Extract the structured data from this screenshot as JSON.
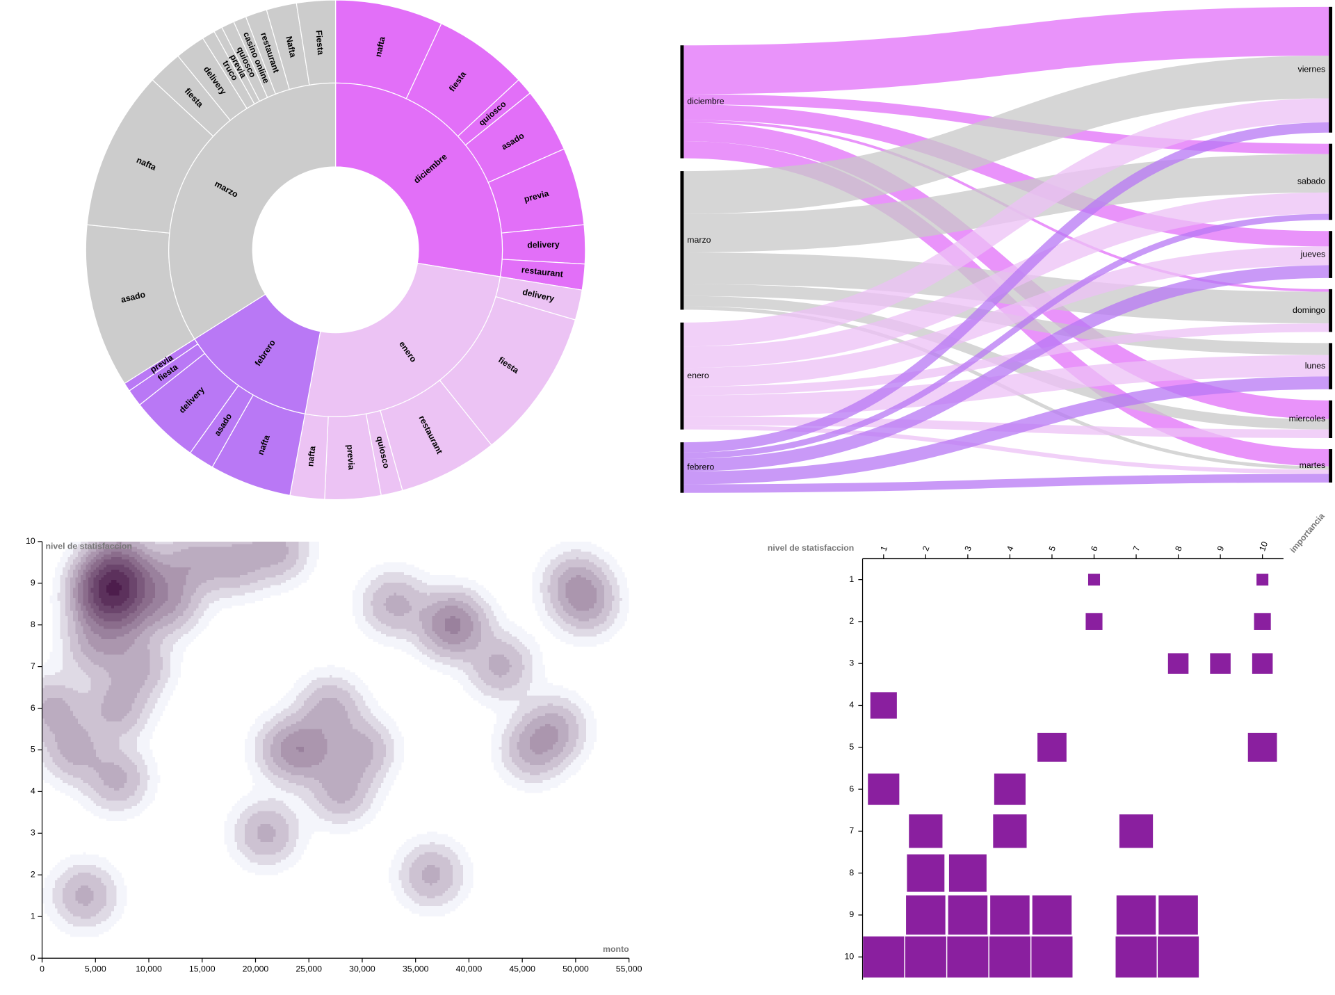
{
  "chart_data": [
    {
      "type": "sunburst",
      "children": [
        {
          "name": "diciembre",
          "color": "#e26ff8",
          "children": [
            {
              "name": "nafta",
              "value": 25
            },
            {
              "name": "fiesta",
              "value": 22
            },
            {
              "name": "quiosco",
              "value": 4
            },
            {
              "name": "asado",
              "value": 15
            },
            {
              "name": "previa",
              "value": 18
            },
            {
              "name": "delivery",
              "value": 9
            },
            {
              "name": "restaurant",
              "value": 6
            }
          ]
        },
        {
          "name": "enero",
          "color": "#ecc3f4",
          "children": [
            {
              "name": "delivery",
              "value": 7
            },
            {
              "name": "fiesta",
              "value": 35
            },
            {
              "name": "restaurant",
              "value": 23
            },
            {
              "name": "quiosco",
              "value": 5
            },
            {
              "name": "previa",
              "value": 13
            },
            {
              "name": "nafta",
              "value": 8
            }
          ]
        },
        {
          "name": "febrero",
          "color": "#b978f5",
          "children": [
            {
              "name": "nafta",
              "value": 19
            },
            {
              "name": "asado",
              "value": 6
            },
            {
              "name": "delivery",
              "value": 16
            },
            {
              "name": "fiesta",
              "value": 4
            },
            {
              "name": "previa",
              "value": 2
            }
          ]
        },
        {
          "name": "marzo",
          "color": "#cccccc",
          "children": [
            {
              "name": "asado",
              "value": 38
            },
            {
              "name": "nafta",
              "value": 37
            },
            {
              "name": "fiesta",
              "value": 8
            },
            {
              "name": "delivery",
              "value": 7
            },
            {
              "name": "truco",
              "value": 3
            },
            {
              "name": "previa",
              "value": 2
            },
            {
              "name": "quiosco",
              "value": 3
            },
            {
              "name": "casino online",
              "value": 3
            },
            {
              "name": "restaurant",
              "value": 5
            },
            {
              "name": "Nafta",
              "value": 7
            },
            {
              "name": "Fiesta",
              "value": 9
            }
          ]
        }
      ]
    },
    {
      "type": "sankey",
      "sources": [
        {
          "name": "diciembre",
          "color": "#e26ff8"
        },
        {
          "name": "marzo",
          "color": "#c8c8c8"
        },
        {
          "name": "enero",
          "color": "#ecc0f5"
        },
        {
          "name": "febrero",
          "color": "#b777f4"
        }
      ],
      "targets": [
        "viernes",
        "sabado",
        "jueves",
        "domingo",
        "lunes",
        "miercoles",
        "martes"
      ],
      "links": [
        {
          "source": "diciembre",
          "target": "viernes",
          "value": 57
        },
        {
          "source": "diciembre",
          "target": "sabado",
          "value": 12
        },
        {
          "source": "diciembre",
          "target": "jueves",
          "value": 18
        },
        {
          "source": "diciembre",
          "target": "domingo",
          "value": 3
        },
        {
          "source": "diciembre",
          "target": "miercoles",
          "value": 22
        },
        {
          "source": "diciembre",
          "target": "martes",
          "value": 20
        },
        {
          "source": "marzo",
          "target": "viernes",
          "value": 50
        },
        {
          "source": "marzo",
          "target": "sabado",
          "value": 45
        },
        {
          "source": "marzo",
          "target": "domingo",
          "value": 37
        },
        {
          "source": "marzo",
          "target": "lunes",
          "value": 14
        },
        {
          "source": "marzo",
          "target": "miercoles",
          "value": 12
        },
        {
          "source": "marzo",
          "target": "martes",
          "value": 4
        },
        {
          "source": "enero",
          "target": "viernes",
          "value": 28
        },
        {
          "source": "enero",
          "target": "sabado",
          "value": 25
        },
        {
          "source": "enero",
          "target": "jueves",
          "value": 22
        },
        {
          "source": "enero",
          "target": "domingo",
          "value": 10
        },
        {
          "source": "enero",
          "target": "lunes",
          "value": 25
        },
        {
          "source": "enero",
          "target": "miercoles",
          "value": 10
        },
        {
          "source": "enero",
          "target": "martes",
          "value": 5
        },
        {
          "source": "febrero",
          "target": "viernes",
          "value": 12
        },
        {
          "source": "febrero",
          "target": "sabado",
          "value": 7
        },
        {
          "source": "febrero",
          "target": "jueves",
          "value": 15
        },
        {
          "source": "febrero",
          "target": "lunes",
          "value": 15
        },
        {
          "source": "febrero",
          "target": "martes",
          "value": 10
        }
      ]
    },
    {
      "type": "contour",
      "x_label": "monto",
      "y_label": "nivel de statisfaccion",
      "color": "#3e0a3c",
      "x": [
        6000,
        6500,
        7000,
        6800,
        5500,
        7500,
        6200,
        8000,
        9000,
        5000,
        7000,
        10000,
        12000,
        14000,
        18000,
        22000,
        7000,
        4000,
        3000,
        1000,
        25000,
        23000,
        28000,
        27000,
        30000,
        36500,
        38000,
        39000,
        51000,
        50000,
        48000,
        46000,
        43000,
        21000,
        33000
      ],
      "y": [
        9,
        9,
        8.8,
        9.2,
        8.5,
        9.5,
        8.6,
        8.2,
        7,
        7.5,
        6,
        9,
        8.5,
        9.5,
        9.5,
        9.8,
        4.3,
        1.5,
        5,
        6,
        5,
        5,
        4,
        6,
        5,
        2,
        8,
        8,
        8.5,
        9,
        5.5,
        5,
        7,
        3,
        8.5
      ],
      "xlim": [
        0,
        55000
      ],
      "xticks": [
        0,
        {
          "value": 5000,
          "label": "5,000"
        },
        {
          "value": 10000,
          "label": "10,000"
        },
        {
          "value": 15000,
          "label": "15,000"
        },
        {
          "value": 20000,
          "label": "20,000"
        },
        {
          "value": 25000,
          "label": "25,000"
        },
        {
          "value": 30000,
          "label": "30,000"
        },
        {
          "value": 35000,
          "label": "35,000"
        },
        {
          "value": 40000,
          "label": "40,000"
        },
        {
          "value": 45000,
          "label": "45,000"
        },
        {
          "value": 50000,
          "label": "50,000"
        },
        {
          "value": 55000,
          "label": "55,000"
        }
      ],
      "ylim": [
        0,
        10
      ],
      "yticks": [
        0,
        1,
        2,
        3,
        4,
        5,
        6,
        7,
        8,
        9,
        10
      ]
    },
    {
      "type": "heatmap",
      "x_label": "importancia",
      "y_label": "nivel de statisfaccion",
      "color": "#8a1f9f",
      "xcategories": [
        1,
        2,
        3,
        4,
        5,
        6,
        7,
        8,
        9,
        10
      ],
      "ycategories": [
        1,
        2,
        3,
        4,
        5,
        6,
        7,
        8,
        9,
        10
      ],
      "cells": [
        {
          "x": 6,
          "y": 1,
          "value": 1
        },
        {
          "x": 10,
          "y": 1,
          "value": 1
        },
        {
          "x": 6,
          "y": 2,
          "value": 2
        },
        {
          "x": 10,
          "y": 2,
          "value": 2
        },
        {
          "x": 8,
          "y": 3,
          "value": 3
        },
        {
          "x": 9,
          "y": 3,
          "value": 3
        },
        {
          "x": 10,
          "y": 3,
          "value": 3
        },
        {
          "x": 1,
          "y": 4,
          "value": 5
        },
        {
          "x": 5,
          "y": 5,
          "value": 6
        },
        {
          "x": 10,
          "y": 5,
          "value": 6
        },
        {
          "x": 1,
          "y": 6,
          "value": 7
        },
        {
          "x": 4,
          "y": 6,
          "value": 7
        },
        {
          "x": 2,
          "y": 7,
          "value": 8
        },
        {
          "x": 4,
          "y": 7,
          "value": 8
        },
        {
          "x": 7,
          "y": 7,
          "value": 8
        },
        {
          "x": 2,
          "y": 8,
          "value": 10
        },
        {
          "x": 3,
          "y": 8,
          "value": 10
        },
        {
          "x": 2,
          "y": 9,
          "value": 11
        },
        {
          "x": 3,
          "y": 9,
          "value": 11
        },
        {
          "x": 4,
          "y": 9,
          "value": 11
        },
        {
          "x": 5,
          "y": 9,
          "value": 11
        },
        {
          "x": 7,
          "y": 9,
          "value": 11
        },
        {
          "x": 8,
          "y": 9,
          "value": 11
        },
        {
          "x": 1,
          "y": 10,
          "value": 12
        },
        {
          "x": 2,
          "y": 10,
          "value": 12
        },
        {
          "x": 3,
          "y": 10,
          "value": 12
        },
        {
          "x": 4,
          "y": 10,
          "value": 12
        },
        {
          "x": 5,
          "y": 10,
          "value": 12
        },
        {
          "x": 7,
          "y": 10,
          "value": 12
        },
        {
          "x": 8,
          "y": 10,
          "value": 12
        }
      ]
    }
  ]
}
